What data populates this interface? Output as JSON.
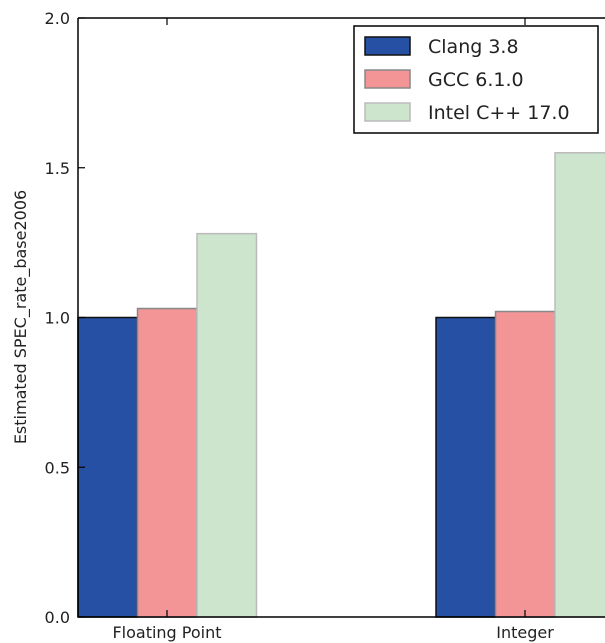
{
  "chart_data": {
    "type": "bar",
    "title": "",
    "xlabel": "",
    "ylabel": "Estimated SPEC_rate_base2006",
    "ylim": [
      0,
      2.0
    ],
    "yticks": [
      "0.0",
      "0.5",
      "1.0",
      "1.5",
      "2.0"
    ],
    "categories": [
      "Floating Point",
      "Integer"
    ],
    "series": [
      {
        "name": "Clang 3.8",
        "values": [
          1.0,
          1.0
        ],
        "color": "#2650a3"
      },
      {
        "name": "GCC 6.1.0",
        "values": [
          1.03,
          1.02
        ],
        "color": "#f39496"
      },
      {
        "name": "Intel C++ 17.0",
        "values": [
          1.28,
          1.55
        ],
        "color": "#cce5cc"
      }
    ],
    "grid": false,
    "legend": "top-right"
  }
}
